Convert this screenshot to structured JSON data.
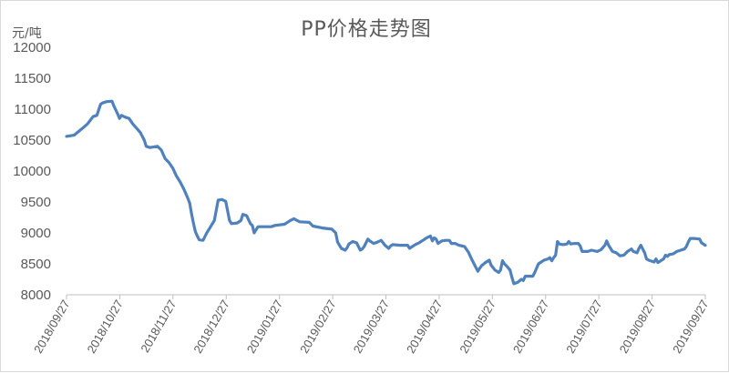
{
  "chart_data": {
    "type": "line",
    "title": "PP价格走势图",
    "ylabel": "元/吨",
    "xlabel": "",
    "ylim": [
      8000,
      12000
    ],
    "yticks": [
      8000,
      8500,
      9000,
      9500,
      10000,
      10500,
      11000,
      11500,
      12000
    ],
    "xtick_labels": [
      "2018/09/27",
      "2018/10/27",
      "2018/11/27",
      "2018/12/27",
      "2019/01/27",
      "2019/02/27",
      "2019/03/27",
      "2019/04/27",
      "2019/05/27",
      "2019/06/27",
      "2019/07/27",
      "2019/08/27",
      "2019/09/27"
    ],
    "grid": false,
    "line_color": "#4f81bd",
    "series": [
      {
        "values": [
          [
            0,
            10560
          ],
          [
            4,
            10580
          ],
          [
            8,
            10680
          ],
          [
            11,
            10760
          ],
          [
            12,
            10800
          ],
          [
            14,
            10880
          ],
          [
            16,
            10900
          ],
          [
            18,
            11080
          ],
          [
            19,
            11100
          ],
          [
            21,
            11120
          ],
          [
            24,
            11130
          ],
          [
            25,
            11050
          ],
          [
            27,
            10920
          ],
          [
            28,
            10850
          ],
          [
            29,
            10900
          ],
          [
            31,
            10870
          ],
          [
            33,
            10850
          ],
          [
            35,
            10760
          ],
          [
            37,
            10690
          ],
          [
            39,
            10620
          ],
          [
            41,
            10500
          ],
          [
            42,
            10400
          ],
          [
            44,
            10380
          ],
          [
            48,
            10400
          ],
          [
            50,
            10340
          ],
          [
            52,
            10200
          ],
          [
            54,
            10140
          ],
          [
            56,
            10050
          ],
          [
            58,
            9920
          ],
          [
            60,
            9820
          ],
          [
            62,
            9700
          ],
          [
            64,
            9560
          ],
          [
            65,
            9480
          ],
          [
            66,
            9300
          ],
          [
            67,
            9150
          ],
          [
            68,
            9020
          ],
          [
            69,
            8950
          ],
          [
            70,
            8890
          ],
          [
            72,
            8880
          ],
          [
            74,
            9000
          ],
          [
            76,
            9100
          ],
          [
            78,
            9200
          ],
          [
            80,
            9530
          ],
          [
            82,
            9540
          ],
          [
            84,
            9510
          ],
          [
            86,
            9200
          ],
          [
            87,
            9150
          ],
          [
            90,
            9160
          ],
          [
            92,
            9200
          ],
          [
            93,
            9300
          ],
          [
            95,
            9280
          ],
          [
            97,
            9150
          ],
          [
            98,
            9120
          ],
          [
            99,
            9000
          ],
          [
            101,
            9100
          ],
          [
            104,
            9100
          ],
          [
            108,
            9100
          ],
          [
            110,
            9120
          ],
          [
            115,
            9140
          ],
          [
            117,
            9180
          ],
          [
            118,
            9200
          ],
          [
            120,
            9230
          ],
          [
            121,
            9210
          ],
          [
            123,
            9180
          ],
          [
            128,
            9170
          ],
          [
            130,
            9110
          ],
          [
            135,
            9080
          ],
          [
            140,
            9060
          ],
          [
            142,
            9000
          ],
          [
            143,
            8850
          ],
          [
            145,
            8750
          ],
          [
            147,
            8720
          ],
          [
            148,
            8760
          ],
          [
            149,
            8820
          ],
          [
            151,
            8860
          ],
          [
            153,
            8840
          ],
          [
            155,
            8720
          ],
          [
            156,
            8740
          ],
          [
            157,
            8780
          ],
          [
            159,
            8900
          ],
          [
            160,
            8870
          ],
          [
            162,
            8830
          ],
          [
            164,
            8850
          ],
          [
            166,
            8880
          ],
          [
            167,
            8840
          ],
          [
            168,
            8800
          ],
          [
            170,
            8750
          ],
          [
            171,
            8790
          ],
          [
            172,
            8810
          ],
          [
            176,
            8800
          ],
          [
            180,
            8800
          ],
          [
            181,
            8750
          ],
          [
            182,
            8770
          ],
          [
            184,
            8810
          ],
          [
            186,
            8840
          ],
          [
            188,
            8880
          ],
          [
            190,
            8920
          ],
          [
            192,
            8950
          ],
          [
            193,
            8870
          ],
          [
            194,
            8920
          ],
          [
            195,
            8900
          ],
          [
            196,
            8830
          ],
          [
            198,
            8870
          ],
          [
            200,
            8880
          ],
          [
            202,
            8880
          ],
          [
            203,
            8830
          ],
          [
            205,
            8830
          ],
          [
            207,
            8800
          ],
          [
            210,
            8780
          ],
          [
            212,
            8690
          ],
          [
            214,
            8560
          ],
          [
            215,
            8500
          ],
          [
            217,
            8380
          ],
          [
            218,
            8430
          ],
          [
            219,
            8470
          ],
          [
            221,
            8520
          ],
          [
            223,
            8560
          ],
          [
            224,
            8480
          ],
          [
            226,
            8400
          ],
          [
            228,
            8360
          ],
          [
            229,
            8400
          ],
          [
            230,
            8550
          ],
          [
            231,
            8500
          ],
          [
            232,
            8470
          ],
          [
            234,
            8400
          ],
          [
            235,
            8280
          ],
          [
            236,
            8180
          ],
          [
            238,
            8200
          ],
          [
            240,
            8250
          ],
          [
            241,
            8230
          ],
          [
            242,
            8300
          ],
          [
            246,
            8300
          ],
          [
            247,
            8360
          ],
          [
            249,
            8500
          ],
          [
            252,
            8560
          ],
          [
            254,
            8580
          ],
          [
            255,
            8600
          ],
          [
            256,
            8550
          ],
          [
            257,
            8600
          ],
          [
            258,
            8640
          ],
          [
            259,
            8860
          ],
          [
            260,
            8820
          ],
          [
            262,
            8810
          ],
          [
            264,
            8820
          ],
          [
            265,
            8860
          ],
          [
            266,
            8820
          ],
          [
            268,
            8830
          ],
          [
            270,
            8830
          ],
          [
            271,
            8790
          ],
          [
            272,
            8700
          ],
          [
            275,
            8700
          ],
          [
            277,
            8720
          ],
          [
            280,
            8700
          ],
          [
            282,
            8730
          ],
          [
            284,
            8800
          ],
          [
            285,
            8870
          ],
          [
            286,
            8800
          ],
          [
            288,
            8700
          ],
          [
            290,
            8680
          ],
          [
            292,
            8630
          ],
          [
            294,
            8640
          ],
          [
            296,
            8700
          ],
          [
            298,
            8740
          ],
          [
            299,
            8700
          ],
          [
            301,
            8680
          ],
          [
            302,
            8750
          ],
          [
            303,
            8800
          ],
          [
            305,
            8680
          ],
          [
            306,
            8580
          ],
          [
            307,
            8560
          ],
          [
            308,
            8550
          ],
          [
            310,
            8530
          ],
          [
            311,
            8580
          ],
          [
            312,
            8520
          ],
          [
            314,
            8560
          ],
          [
            315,
            8580
          ],
          [
            316,
            8640
          ],
          [
            317,
            8620
          ],
          [
            318,
            8650
          ],
          [
            320,
            8660
          ],
          [
            322,
            8700
          ],
          [
            324,
            8720
          ],
          [
            326,
            8740
          ],
          [
            327,
            8780
          ],
          [
            328,
            8850
          ],
          [
            329,
            8910
          ],
          [
            331,
            8910
          ],
          [
            334,
            8900
          ],
          [
            335,
            8840
          ],
          [
            337,
            8800
          ]
        ]
      }
    ]
  }
}
